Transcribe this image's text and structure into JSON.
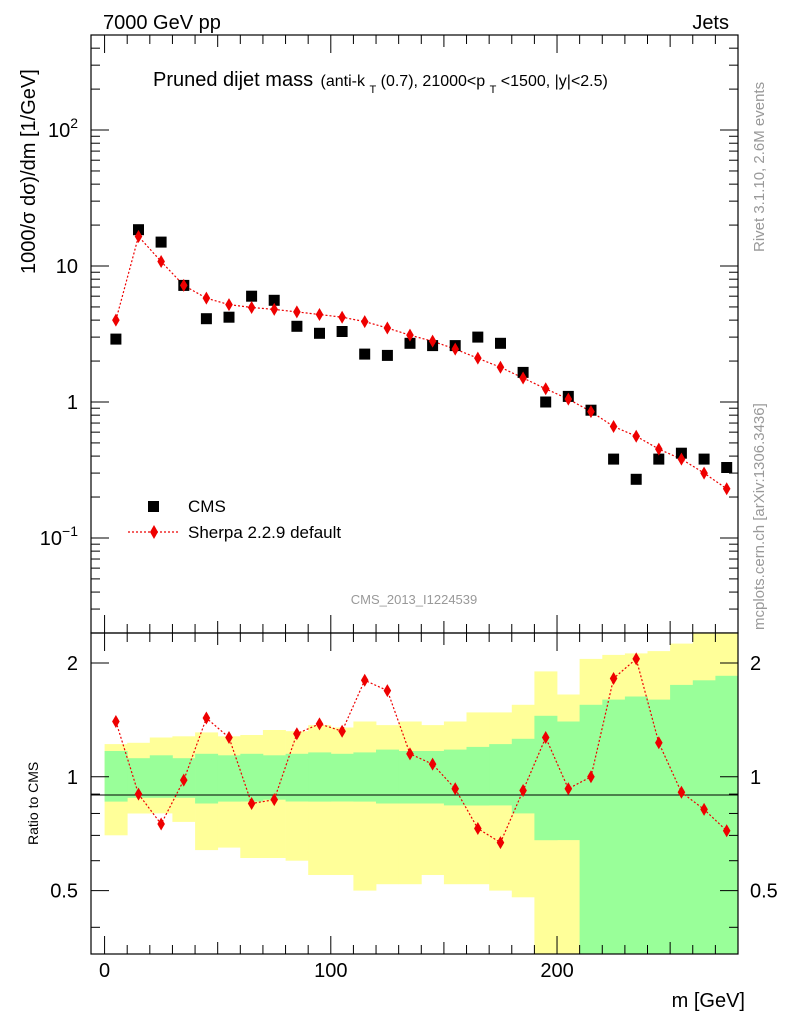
{
  "header": {
    "left": "7000 GeV pp",
    "right": "Jets"
  },
  "plot_title": {
    "main": "Pruned dijet mass",
    "sub_part1": "(anti-k",
    "sub_T1": "T",
    "sub_part2": "(0.7), 21000<p",
    "sub_T2": "T",
    "sub_part3": "<1500, |y|<2.5)"
  },
  "side_text": {
    "rivet": "Rivet 3.1.10,  2.6M events",
    "source": "mcplots.cern.ch [arXiv:1306.3436]"
  },
  "watermark": "CMS_2013_I1224539",
  "axes": {
    "ylabel_main": "1000/σ dσ)/dm [1/GeV]",
    "ylabel_ratio": "Ratio to CMS",
    "xlabel": "m [GeV]",
    "main_yticks": [
      {
        "value": 100,
        "base": "10",
        "exp": "2"
      },
      {
        "value": 10,
        "text": "10"
      },
      {
        "value": 1,
        "text": "1"
      },
      {
        "value": 0.1,
        "base": "10",
        "exp": "−1"
      }
    ],
    "ratio_yticks": [
      {
        "value": 2,
        "text": "2"
      },
      {
        "value": 1,
        "text": "1"
      },
      {
        "value": 0.5,
        "text": "0.5"
      }
    ],
    "xticks": [
      {
        "value": 0,
        "text": "0"
      },
      {
        "value": 100,
        "text": "100"
      },
      {
        "value": 200,
        "text": "200"
      }
    ]
  },
  "legend": {
    "cms": "CMS",
    "sherpa": "Sherpa 2.2.9 default"
  },
  "chart_data": {
    "type": "scatter",
    "x_scale": "linear",
    "xlim": [
      -6,
      280
    ],
    "main_y_scale": "log",
    "main_ylim": [
      0.02,
      500
    ],
    "ratio_y_scale": "log",
    "ratio_ylim": [
      0.34,
      2.4
    ],
    "x": [
      5,
      15,
      25,
      35,
      45,
      55,
      65,
      75,
      85,
      95,
      105,
      115,
      125,
      135,
      145,
      155,
      165,
      175,
      185,
      195,
      205,
      215,
      225,
      235,
      245,
      255,
      265,
      275
    ],
    "bin_edges": [
      0,
      10,
      20,
      30,
      40,
      50,
      60,
      70,
      80,
      90,
      100,
      110,
      120,
      130,
      140,
      150,
      160,
      170,
      180,
      190,
      200,
      210,
      220,
      230,
      240,
      250,
      260,
      270,
      280
    ],
    "series": [
      {
        "name": "CMS",
        "color": "#000000",
        "marker": "square",
        "values": [
          2.9,
          18.5,
          15.0,
          7.2,
          4.1,
          4.2,
          6.0,
          5.6,
          3.6,
          3.2,
          3.3,
          2.25,
          2.2,
          2.7,
          2.6,
          2.6,
          3.0,
          2.7,
          1.65,
          1.0,
          1.1,
          0.87,
          0.38,
          0.27,
          0.38,
          0.42,
          0.38,
          0.33
        ]
      },
      {
        "name": "Sherpa 2.2.9 default",
        "color": "#ee0000",
        "marker": "diamond",
        "line": "dotted",
        "values": [
          4.0,
          16.5,
          10.8,
          7.2,
          5.8,
          5.2,
          4.95,
          4.8,
          4.6,
          4.4,
          4.2,
          3.9,
          3.5,
          3.1,
          2.8,
          2.45,
          2.1,
          1.8,
          1.5,
          1.25,
          1.05,
          0.85,
          0.66,
          0.56,
          0.45,
          0.38,
          0.3,
          0.23
        ]
      }
    ],
    "ratio": {
      "series": "Sherpa 2.2.9 default",
      "values": [
        1.4,
        0.9,
        0.75,
        0.98,
        1.43,
        1.27,
        0.85,
        0.87,
        1.3,
        1.38,
        1.32,
        1.8,
        1.69,
        1.15,
        1.08,
        0.93,
        0.73,
        0.67,
        0.92,
        1.27,
        0.93,
        1.0,
        1.82,
        2.05,
        1.23,
        0.91,
        0.82,
        0.72
      ],
      "band_inner": [
        [
          0.86,
          1.17
        ],
        [
          0.88,
          1.12
        ],
        [
          0.88,
          1.14
        ],
        [
          0.88,
          1.12
        ],
        [
          0.85,
          1.15
        ],
        [
          0.86,
          1.14
        ],
        [
          0.86,
          1.15
        ],
        [
          0.87,
          1.14
        ],
        [
          0.86,
          1.15
        ],
        [
          0.86,
          1.16
        ],
        [
          0.86,
          1.15
        ],
        [
          0.86,
          1.16
        ],
        [
          0.85,
          1.18
        ],
        [
          0.85,
          1.17
        ],
        [
          0.85,
          1.17
        ],
        [
          0.84,
          1.18
        ],
        [
          0.84,
          1.2
        ],
        [
          0.84,
          1.22
        ],
        [
          0.8,
          1.26
        ],
        [
          0.68,
          1.45
        ],
        [
          0.68,
          1.4
        ],
        [
          0.34,
          1.55
        ],
        [
          0.34,
          1.6
        ],
        [
          0.34,
          1.63
        ],
        [
          0.34,
          1.6
        ],
        [
          0.34,
          1.75
        ],
        [
          0.34,
          1.8
        ],
        [
          0.34,
          1.85
        ]
      ],
      "band_outer": [
        [
          0.7,
          1.22
        ],
        [
          0.8,
          1.23
        ],
        [
          0.8,
          1.27
        ],
        [
          0.76,
          1.28
        ],
        [
          0.64,
          1.31
        ],
        [
          0.65,
          1.28
        ],
        [
          0.61,
          1.29
        ],
        [
          0.61,
          1.33
        ],
        [
          0.6,
          1.32
        ],
        [
          0.55,
          1.37
        ],
        [
          0.55,
          1.35
        ],
        [
          0.5,
          1.4
        ],
        [
          0.52,
          1.37
        ],
        [
          0.52,
          1.4
        ],
        [
          0.55,
          1.37
        ],
        [
          0.52,
          1.4
        ],
        [
          0.52,
          1.48
        ],
        [
          0.5,
          1.48
        ],
        [
          0.48,
          1.55
        ],
        [
          0.34,
          1.9
        ],
        [
          0.34,
          1.65
        ],
        [
          0.34,
          2.05
        ],
        [
          0.34,
          2.1
        ],
        [
          0.34,
          2.12
        ],
        [
          0.34,
          2.15
        ],
        [
          0.37,
          2.25
        ],
        [
          0.34,
          2.4
        ],
        [
          0.34,
          2.4
        ]
      ]
    },
    "grid": false,
    "legend_position": "lower-left"
  }
}
